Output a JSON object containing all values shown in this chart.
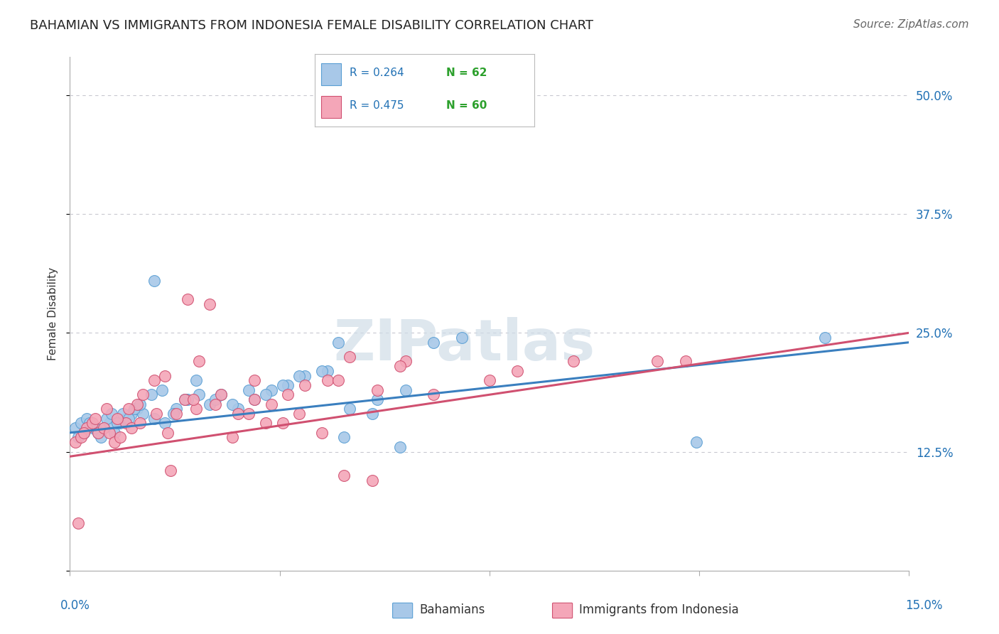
{
  "title": "BAHAMIAN VS IMMIGRANTS FROM INDONESIA FEMALE DISABILITY CORRELATION CHART",
  "source": "Source: ZipAtlas.com",
  "ylabel": "Female Disability",
  "watermark": "ZIPatlas",
  "series": [
    {
      "name": "Bahamians",
      "R": 0.264,
      "N": 62,
      "color": "#a8c8e8",
      "edge_color": "#5a9fd4",
      "x": [
        0.1,
        0.2,
        0.3,
        0.4,
        0.5,
        0.6,
        0.7,
        0.8,
        0.9,
        1.0,
        1.1,
        1.2,
        1.3,
        1.5,
        1.7,
        1.9,
        2.1,
        2.3,
        2.5,
        2.7,
        3.0,
        3.3,
        3.6,
        3.9,
        4.2,
        4.6,
        5.0,
        5.5,
        6.0,
        0.15,
        0.25,
        0.35,
        0.45,
        0.55,
        0.65,
        0.75,
        0.85,
        0.95,
        1.05,
        1.15,
        1.25,
        1.45,
        1.65,
        1.85,
        2.05,
        2.25,
        2.6,
        2.9,
        3.2,
        3.5,
        3.8,
        4.1,
        4.5,
        4.9,
        5.4,
        5.9,
        6.5,
        7.0,
        11.2,
        13.5,
        1.5,
        4.8
      ],
      "y": [
        15.0,
        15.5,
        16.0,
        15.0,
        14.5,
        15.0,
        15.5,
        14.5,
        15.5,
        16.0,
        16.5,
        17.0,
        16.5,
        16.0,
        15.5,
        17.0,
        18.0,
        18.5,
        17.5,
        18.5,
        17.0,
        18.0,
        19.0,
        19.5,
        20.5,
        21.0,
        17.0,
        18.0,
        19.0,
        14.0,
        14.5,
        15.5,
        15.0,
        14.0,
        16.0,
        16.5,
        15.5,
        16.5,
        16.0,
        17.0,
        17.5,
        18.5,
        19.0,
        16.5,
        18.0,
        20.0,
        18.0,
        17.5,
        19.0,
        18.5,
        19.5,
        20.5,
        21.0,
        14.0,
        16.5,
        13.0,
        24.0,
        24.5,
        13.5,
        24.5,
        30.5,
        24.0
      ],
      "trend_color": "#3a7fbf",
      "trend_x0": 0.0,
      "trend_x1": 15.0,
      "trend_y0": 14.5,
      "trend_y1": 24.0
    },
    {
      "name": "Immigrants from Indonesia",
      "R": 0.475,
      "N": 60,
      "color": "#f4a6b8",
      "edge_color": "#d05070",
      "x": [
        0.1,
        0.2,
        0.3,
        0.4,
        0.5,
        0.6,
        0.7,
        0.8,
        0.9,
        1.0,
        1.1,
        1.2,
        1.3,
        1.5,
        1.7,
        1.9,
        2.1,
        2.3,
        2.5,
        2.7,
        3.0,
        3.3,
        3.6,
        3.9,
        4.2,
        4.6,
        5.0,
        5.5,
        6.0,
        6.5,
        0.25,
        0.45,
        0.65,
        0.85,
        1.05,
        1.25,
        1.55,
        1.75,
        2.05,
        2.25,
        2.6,
        2.9,
        3.2,
        3.5,
        3.8,
        4.1,
        4.5,
        4.9,
        5.4,
        7.5,
        8.0,
        9.0,
        10.5,
        11.0,
        0.15,
        2.2,
        1.8,
        3.3,
        4.8,
        5.9
      ],
      "y": [
        13.5,
        14.0,
        15.0,
        15.5,
        14.5,
        15.0,
        14.5,
        13.5,
        14.0,
        15.5,
        15.0,
        17.5,
        18.5,
        20.0,
        20.5,
        16.5,
        28.5,
        22.0,
        28.0,
        18.5,
        16.5,
        20.0,
        17.5,
        18.5,
        19.5,
        20.0,
        22.5,
        19.0,
        22.0,
        18.5,
        14.5,
        16.0,
        17.0,
        16.0,
        17.0,
        15.5,
        16.5,
        14.5,
        18.0,
        17.0,
        17.5,
        14.0,
        16.5,
        15.5,
        15.5,
        16.5,
        14.5,
        10.0,
        9.5,
        20.0,
        21.0,
        22.0,
        22.0,
        22.0,
        5.0,
        18.0,
        10.5,
        18.0,
        20.0,
        21.5
      ],
      "trend_color": "#d05070",
      "trend_x0": 0.0,
      "trend_x1": 15.0,
      "trend_y0": 12.0,
      "trend_y1": 25.0
    }
  ],
  "xlim": [
    0,
    15
  ],
  "ylim": [
    0,
    54
  ],
  "yticks": [
    0,
    12.5,
    25.0,
    37.5,
    50.0
  ],
  "ytick_labels": [
    "",
    "12.5%",
    "25.0%",
    "37.5%",
    "50.0%"
  ],
  "xtick_positions": [
    0,
    3.75,
    7.5,
    11.25,
    15.0
  ],
  "grid_color": "#c8c8d0",
  "background_color": "#ffffff",
  "legend_R_color": "#2171b5",
  "legend_N_color": "#2ca02c",
  "title_fontsize": 13,
  "axis_label_color": "#2171b5"
}
